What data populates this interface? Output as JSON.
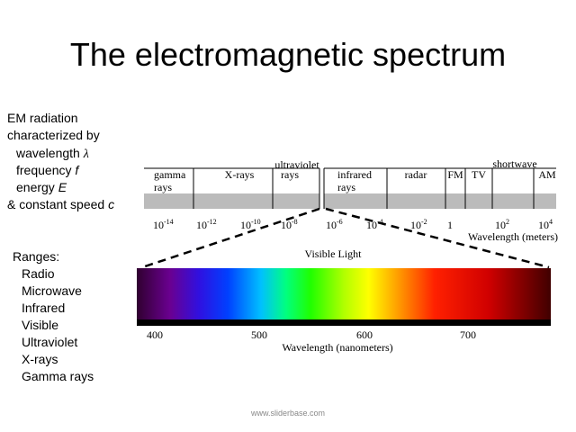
{
  "title": "The electromagnetic spectrum",
  "properties": {
    "lines": [
      "EM radiation",
      "characterized by"
    ],
    "items": [
      {
        "text": "wavelength",
        "symbol": "λ"
      },
      {
        "text": "frequency",
        "symbol": "f"
      },
      {
        "text": "energy",
        "symbol": "E"
      },
      {
        "text": "& constant speed",
        "symbol": "c"
      }
    ]
  },
  "ranges": {
    "heading": "Ranges:",
    "items": [
      "Radio",
      "Microwave",
      "Infrared",
      "Visible",
      "Ultraviolet",
      "X-rays",
      "Gamma rays"
    ]
  },
  "spectrum": {
    "bands": [
      [
        "gamma",
        "rays"
      ],
      [
        "X-rays"
      ],
      [
        "ultraviolet",
        "rays"
      ],
      [
        "infrared",
        "rays"
      ],
      [
        "radar"
      ],
      [
        "FM"
      ],
      [
        "TV"
      ],
      [
        "shortwave"
      ],
      [
        "AM"
      ]
    ],
    "ticks": [
      {
        "base": "10",
        "exp": "-14"
      },
      {
        "base": "10",
        "exp": "-12"
      },
      {
        "base": "10",
        "exp": "-10"
      },
      {
        "base": "10",
        "exp": "-8"
      },
      {
        "base": "10",
        "exp": "-6"
      },
      {
        "base": "10",
        "exp": "-4"
      },
      {
        "base": "10",
        "exp": "-2"
      },
      {
        "base": "1"
      },
      {
        "base": "10",
        "exp": "2"
      },
      {
        "base": "10",
        "exp": "4"
      }
    ],
    "axis_label": "Wavelength (meters)"
  },
  "visible": {
    "label": "Visible Light",
    "ticks": [
      "400",
      "500",
      "600",
      "700"
    ],
    "axis_label": "Wavelength (nanometers)"
  },
  "footer": "www.sliderbase.com"
}
